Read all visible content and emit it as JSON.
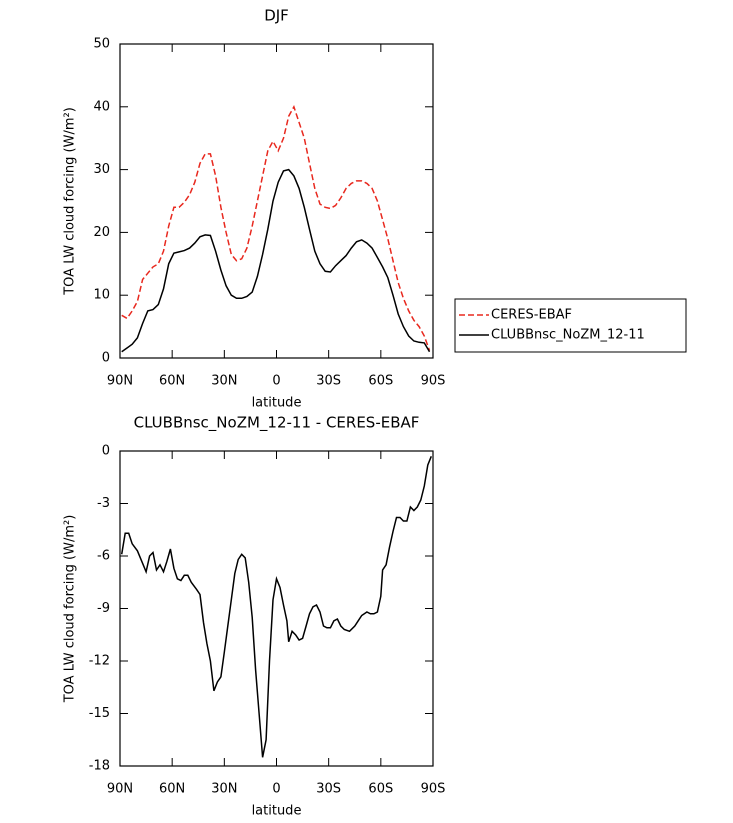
{
  "chart_data": [
    {
      "type": "line",
      "title": "DJF",
      "xlabel": "latitude",
      "ylabel": "TOA LW cloud forcing (W/m²)",
      "xlim": [
        90,
        -90
      ],
      "xticks": [
        {
          "value": 90,
          "label": "90N"
        },
        {
          "value": 60,
          "label": "60N"
        },
        {
          "value": 30,
          "label": "30N"
        },
        0,
        {
          "value": -30,
          "label": "30S"
        },
        {
          "value": -60,
          "label": "60S"
        },
        {
          "value": -90,
          "label": "90S"
        }
      ],
      "ylim": [
        0,
        50
      ],
      "yticks": [
        0,
        10,
        20,
        30,
        40,
        50
      ],
      "legend": "right",
      "x": [
        89,
        86,
        83,
        80,
        77,
        74,
        71,
        68,
        65,
        62,
        59,
        56,
        53,
        50,
        47,
        44,
        41,
        38,
        35,
        32,
        29,
        26,
        23,
        20,
        17,
        14,
        11,
        8,
        5,
        2,
        -1,
        -4,
        -7,
        -10,
        -13,
        -16,
        -19,
        -22,
        -25,
        -28,
        -31,
        -34,
        -37,
        -40,
        -43,
        -46,
        -49,
        -52,
        -55,
        -58,
        -61,
        -64,
        -67,
        -70,
        -73,
        -76,
        -79,
        -82,
        -85,
        -88
      ],
      "series": [
        {
          "name": "CERES-EBAF",
          "color": "#e8281e",
          "linestyle": "dashed",
          "values": [
            6.8,
            6.3,
            7.5,
            9,
            12.5,
            13.5,
            14.5,
            15,
            17,
            21,
            24,
            24,
            24.8,
            26,
            28,
            31,
            32.5,
            32.5,
            29,
            24,
            20,
            16.5,
            15.5,
            15.8,
            17.5,
            21,
            25,
            29,
            33,
            34.5,
            33,
            35,
            38.5,
            40,
            37.5,
            35,
            31,
            27,
            24.5,
            24,
            23.8,
            24.3,
            25.5,
            27,
            27.8,
            28.2,
            28.2,
            27.8,
            27,
            25,
            22,
            19,
            15.5,
            12,
            9.5,
            7.5,
            6,
            5,
            3.5,
            1.2
          ]
        },
        {
          "name": "CLUBBnsc_NoZM_12-11",
          "color": "#000000",
          "linestyle": "solid",
          "values": [
            1,
            1.6,
            2.2,
            3.2,
            5.5,
            7.5,
            7.7,
            8.5,
            11,
            15,
            16.7,
            16.9,
            17.1,
            17.5,
            18.3,
            19.3,
            19.6,
            19.5,
            17,
            14,
            11.5,
            10,
            9.5,
            9.5,
            9.8,
            10.5,
            13,
            16.5,
            20.5,
            25,
            28,
            29.8,
            30,
            29,
            27,
            24,
            20.5,
            17,
            15,
            13.8,
            13.7,
            14.7,
            15.5,
            16.3,
            17.5,
            18.5,
            18.8,
            18.3,
            17.5,
            16,
            14.5,
            12.8,
            10,
            7,
            5,
            3.5,
            2.7,
            2.5,
            2.4,
            1
          ]
        }
      ]
    },
    {
      "type": "line",
      "title": "CLUBBnsc_NoZM_12-11 - CERES-EBAF",
      "xlabel": "latitude",
      "ylabel": "TOA LW cloud forcing (W/m²)",
      "xlim": [
        90,
        -90
      ],
      "xticks": [
        {
          "value": 90,
          "label": "90N"
        },
        {
          "value": 60,
          "label": "60N"
        },
        {
          "value": 30,
          "label": "30N"
        },
        0,
        {
          "value": -30,
          "label": "30S"
        },
        {
          "value": -60,
          "label": "60S"
        },
        {
          "value": -90,
          "label": "90S"
        }
      ],
      "ylim": [
        -18,
        0
      ],
      "yticks": [
        -18,
        -15,
        -12,
        -9,
        -6,
        -3,
        0
      ],
      "x": [
        89,
        87,
        85,
        83,
        80,
        75,
        73,
        71,
        69,
        67,
        65,
        63,
        61,
        59,
        57,
        55,
        53,
        51,
        49,
        46,
        44,
        42,
        40,
        38,
        36,
        34,
        32,
        30,
        28,
        26,
        24,
        22,
        20,
        18,
        16,
        14,
        12,
        10,
        8,
        6,
        4,
        2,
        0,
        -2,
        -4,
        -6,
        -7,
        -9,
        -11,
        -13,
        -15,
        -17,
        -19,
        -21,
        -23,
        -25,
        -27,
        -29,
        -31,
        -33,
        -35,
        -37,
        -39,
        -42,
        -45,
        -47,
        -49,
        -52,
        -54,
        -56,
        -58,
        -60,
        -61,
        -63,
        -65,
        -67,
        -69,
        -71,
        -73,
        -75,
        -77,
        -79,
        -81,
        -83,
        -85,
        -87,
        -89
      ],
      "series": [
        {
          "color": "#000000",
          "linestyle": "solid",
          "values": [
            -5.9,
            -4.7,
            -4.7,
            -5.3,
            -5.7,
            -6.9,
            -6.0,
            -5.8,
            -6.8,
            -6.5,
            -6.9,
            -6.3,
            -5.6,
            -6.7,
            -7.3,
            -7.4,
            -7.1,
            -7.1,
            -7.5,
            -7.9,
            -8.2,
            -9.8,
            -11,
            -12,
            -13.7,
            -13.2,
            -12.9,
            -11.5,
            -10,
            -8.5,
            -7,
            -6.2,
            -5.9,
            -6.1,
            -7.5,
            -9.5,
            -12.5,
            -15,
            -17.5,
            -16.5,
            -12,
            -8.5,
            -7.3,
            -7.8,
            -8.8,
            -9.7,
            -10.9,
            -10.3,
            -10.5,
            -10.8,
            -10.7,
            -10,
            -9.3,
            -8.9,
            -8.8,
            -9.2,
            -10,
            -10.1,
            -10.1,
            -9.7,
            -9.6,
            -10,
            -10.2,
            -10.3,
            -10,
            -9.7,
            -9.4,
            -9.2,
            -9.3,
            -9.3,
            -9.2,
            -8.3,
            -6.8,
            -6.5,
            -5.5,
            -4.6,
            -3.8,
            -3.8,
            -4,
            -4,
            -3.2,
            -3.4,
            -3.2,
            -2.8,
            -2,
            -0.8,
            -0.3
          ]
        }
      ]
    }
  ]
}
